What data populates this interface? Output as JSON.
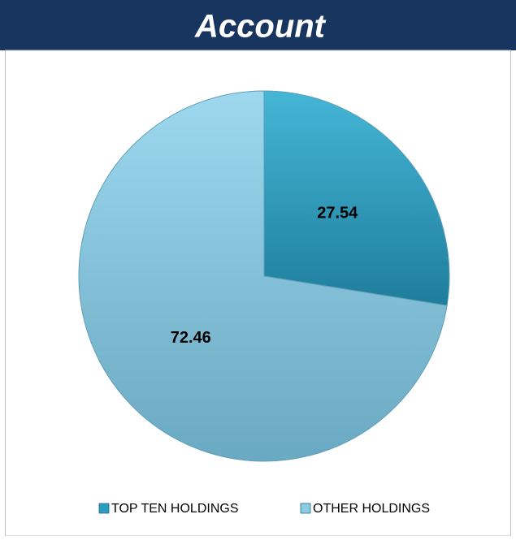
{
  "chart_data": {
    "type": "pie",
    "title": "Account",
    "categories": [
      "TOP TEN HOLDINGS",
      "OTHER HOLDINGS"
    ],
    "values": [
      27.54,
      72.46
    ],
    "colors": [
      "#2f9cbd",
      "#8ccbe2"
    ],
    "legend": "bottom"
  }
}
